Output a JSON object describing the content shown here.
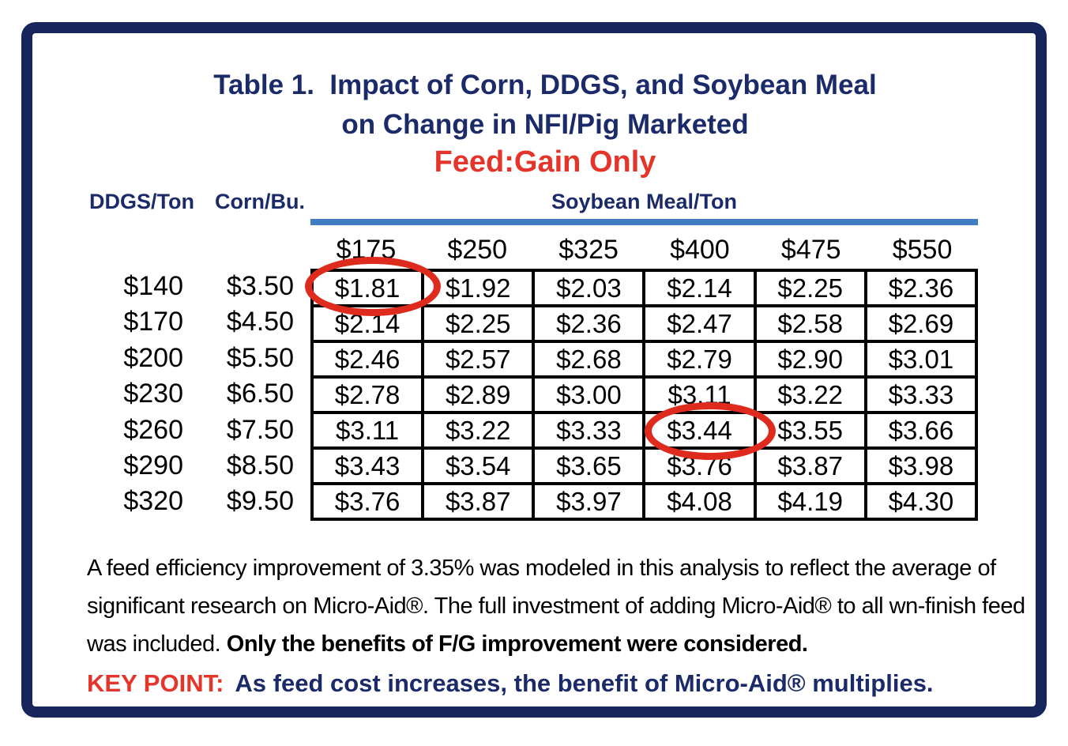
{
  "title": {
    "line1": "Table 1.  Impact of Corn, DDGS, and Soybean Meal",
    "line2": "on Change in NFI/Pig Marketed",
    "subtitle": "Feed:Gain Only"
  },
  "columns": {
    "ddgs_header": "DDGS/Ton",
    "corn_header": "Corn/Bu.",
    "soybean_group_header": "Soybean Meal/Ton"
  },
  "soybean_prices": [
    "$175",
    "$250",
    "$325",
    "$400",
    "$475",
    "$550"
  ],
  "rows": [
    {
      "ddgs": "$140",
      "corn": "$3.50",
      "values": [
        "$1.81",
        "$1.92",
        "$2.03",
        "$2.14",
        "$2.25",
        "$2.36"
      ]
    },
    {
      "ddgs": "$170",
      "corn": "$4.50",
      "values": [
        "$2.14",
        "$2.25",
        "$2.36",
        "$2.47",
        "$2.58",
        "$2.69"
      ]
    },
    {
      "ddgs": "$200",
      "corn": "$5.50",
      "values": [
        "$2.46",
        "$2.57",
        "$2.68",
        "$2.79",
        "$2.90",
        "$3.01"
      ]
    },
    {
      "ddgs": "$230",
      "corn": "$6.50",
      "values": [
        "$2.78",
        "$2.89",
        "$3.00",
        "$3.11",
        "$3.22",
        "$3.33"
      ]
    },
    {
      "ddgs": "$260",
      "corn": "$7.50",
      "values": [
        "$3.11",
        "$3.22",
        "$3.33",
        "$3.44",
        "$3.55",
        "$3.66"
      ]
    },
    {
      "ddgs": "$290",
      "corn": "$8.50",
      "values": [
        "$3.43",
        "$3.54",
        "$3.65",
        "$3.76",
        "$3.87",
        "$3.98"
      ]
    },
    {
      "ddgs": "$320",
      "corn": "$9.50",
      "values": [
        "$3.76",
        "$3.87",
        "$3.97",
        "$4.08",
        "$4.19",
        "$4.30"
      ]
    }
  ],
  "circled_values": [
    "$1.81",
    "$3.44"
  ],
  "footnote": {
    "regular": "A feed efficiency improvement of 3.35% was modeled in this analysis to reflect the average of significant research on Micro-Aid®. The full investment of adding Micro-Aid® to all wn-finish feed was included. ",
    "bold": "Only the benefits of F/G improvement were considered."
  },
  "key_point": {
    "label": "KEY POINT:",
    "text": "As feed cost increases, the benefit of Micro-Aid® multiplies."
  },
  "colors": {
    "navy_text": "#1b2a68",
    "frame_border": "#16265c",
    "red_text": "#e5352a",
    "red_ellipse": "#de2b1d",
    "blue_rule": "#3f7cc0"
  }
}
